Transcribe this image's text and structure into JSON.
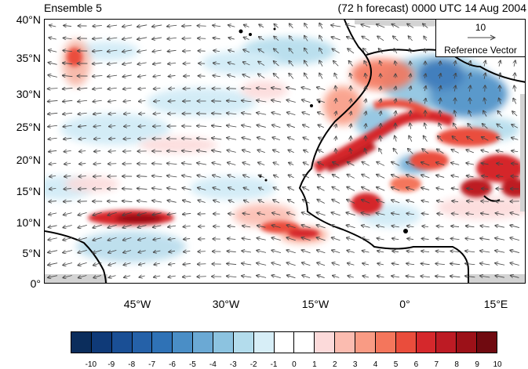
{
  "header": {
    "left_title": "Ensemble 5",
    "right_title": "(72 h forecast) 0000 UTC 14 Aug 2004"
  },
  "map": {
    "lat_labels": [
      "40°N",
      "35°N",
      "30°N",
      "25°N",
      "20°N",
      "15°N",
      "10°N",
      "5°N",
      "0°"
    ],
    "lon_labels": [
      "45°W",
      "30°W",
      "15°W",
      "0°",
      "15°E"
    ],
    "land_mask_color": "#d3d3d3",
    "coastline_color": "#000000",
    "vector_color": "#444444"
  },
  "reference_vector": {
    "magnitude": "10",
    "label": "Reference Vector"
  },
  "colorbar": {
    "labels": [
      "-10",
      "-9",
      "-8",
      "-7",
      "-6",
      "-5",
      "-4",
      "-3",
      "-2",
      "-1",
      "0",
      "1",
      "2",
      "3",
      "4",
      "5",
      "6",
      "7",
      "8",
      "9",
      "10"
    ],
    "colors": [
      "#0b2d5c",
      "#0f3a78",
      "#1a4f95",
      "#2561a8",
      "#2f72b6",
      "#4a8ec6",
      "#6ba9d4",
      "#8cc3e0",
      "#b3dcec",
      "#d7eef7",
      "#ffffff",
      "#ffffff",
      "#fcdada",
      "#fbbcb0",
      "#f99b84",
      "#f4765c",
      "#ea4d3c",
      "#d5282c",
      "#bd1b24",
      "#9c1118",
      "#700a10"
    ]
  }
}
